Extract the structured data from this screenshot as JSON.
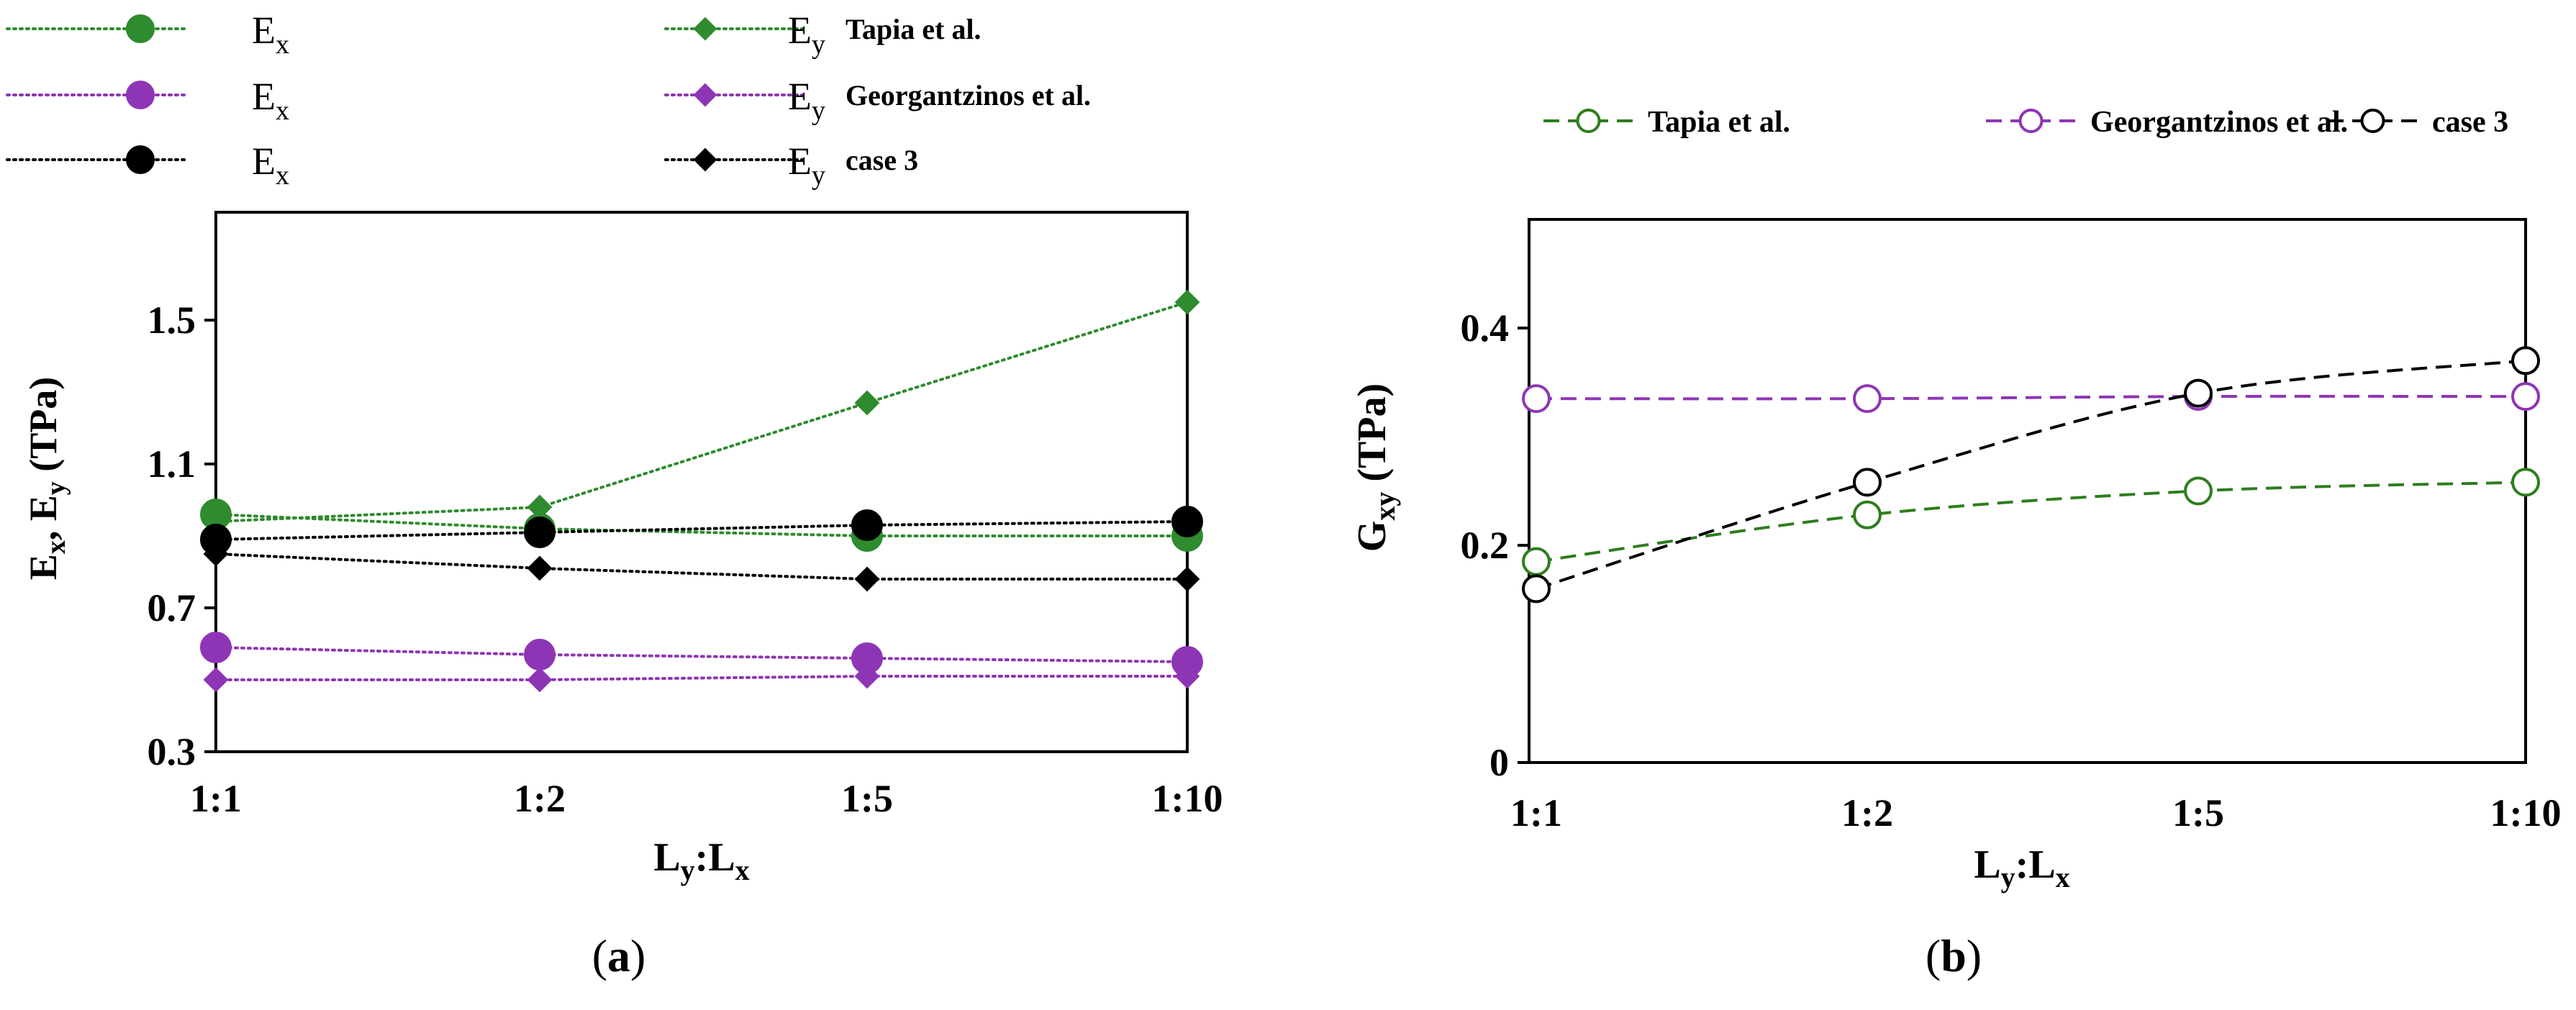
{
  "chart_data": [
    {
      "id": "a",
      "type": "line",
      "panel_label": "(a)",
      "panel_letter": "a",
      "categories": [
        "1:1",
        "1:2",
        "1:5",
        "1:10"
      ],
      "ylim": [
        0.3,
        1.8
      ],
      "yticks": [
        0.3,
        0.7,
        1.1,
        1.5
      ],
      "ytick_labels": [
        "0.3",
        "0.7",
        "1.1",
        "1.5"
      ],
      "xlabel": {
        "main": "L",
        "sub1": "y",
        "mid": ":L",
        "sub2": "x"
      },
      "ylabel": {
        "part1": "E",
        "sub1": "x",
        "part2": ", E",
        "sub2": "y",
        "unit": " (TPa)"
      },
      "series": [
        {
          "name": "E",
          "sub": "x",
          "source": "",
          "marker": "circle",
          "color": "#2e8b2e",
          "values": [
            0.96,
            0.92,
            0.9,
            0.9
          ]
        },
        {
          "name": "E",
          "sub": "y",
          "source": "Tapia et al.",
          "marker": "diamond",
          "color": "#2e8b2e",
          "values": [
            0.94,
            0.98,
            1.27,
            1.55
          ]
        },
        {
          "name": "E",
          "sub": "x",
          "source": "",
          "marker": "circle",
          "color": "#8e35b5",
          "values": [
            0.59,
            0.57,
            0.56,
            0.55
          ]
        },
        {
          "name": "E",
          "sub": "y",
          "source": "Georgantzinos et al.",
          "marker": "diamond",
          "color": "#8e35b5",
          "values": [
            0.5,
            0.5,
            0.51,
            0.51
          ]
        },
        {
          "name": "E",
          "sub": "x",
          "source": "",
          "marker": "circle",
          "color": "#000000",
          "values": [
            0.89,
            0.91,
            0.93,
            0.94
          ]
        },
        {
          "name": "E",
          "sub": "y",
          "source": "case 3",
          "marker": "diamond",
          "color": "#000000",
          "values": [
            0.85,
            0.81,
            0.78,
            0.78
          ]
        }
      ]
    },
    {
      "id": "b",
      "type": "line",
      "panel_label": "(b)",
      "panel_letter": "b",
      "categories": [
        "1:1",
        "1:2",
        "1:5",
        "1:10"
      ],
      "ylim": [
        0,
        0.5
      ],
      "yticks": [
        0,
        0.2,
        0.4
      ],
      "ytick_labels": [
        "0",
        "0.2",
        "0.4"
      ],
      "xlabel": {
        "main": "L",
        "sub1": "y",
        "mid": ":L",
        "sub2": "x"
      },
      "ylabel": {
        "part1": "G",
        "sub1": "xy",
        "unit": " (TPa)"
      },
      "series": [
        {
          "name": "Tapia et al.",
          "color": "#2e7d1e",
          "values": [
            0.185,
            0.228,
            0.25,
            0.258
          ]
        },
        {
          "name": "Georgantzinos et al.",
          "color": "#8e35b5",
          "values": [
            0.335,
            0.335,
            0.337,
            0.337
          ]
        },
        {
          "name": "case 3",
          "color": "#000000",
          "values": [
            0.16,
            0.258,
            0.34,
            0.37
          ]
        }
      ]
    }
  ]
}
